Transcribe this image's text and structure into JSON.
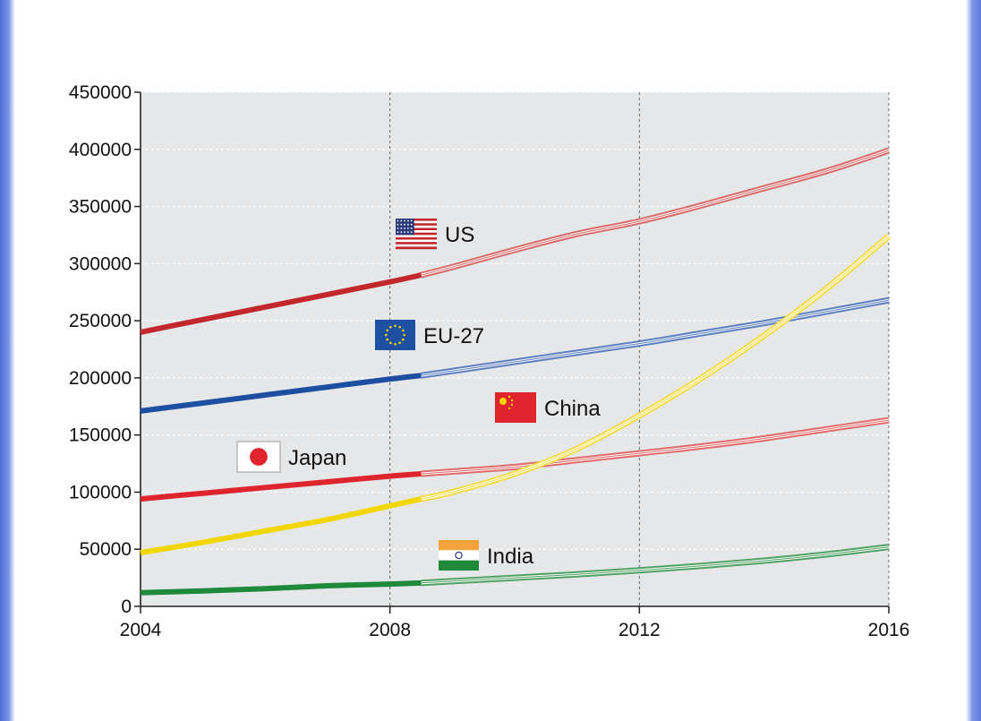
{
  "chart_data": {
    "type": "line",
    "title": "",
    "xlabel": "",
    "ylabel": "",
    "xlim": [
      2004,
      2016
    ],
    "ylim": [
      0,
      450000
    ],
    "x_ticks": [
      "2004",
      "2008",
      "2012",
      "2016"
    ],
    "y_ticks": [
      "0",
      "50000",
      "100000",
      "150000",
      "200000",
      "250000",
      "300000",
      "350000",
      "400000",
      "450000"
    ],
    "grid": true,
    "background": "#e6e7e8",
    "actual_until": 2008.5,
    "series": [
      {
        "name": "US",
        "flag": "us-flag-icon",
        "color": "#c1272d",
        "projection_color": "#d86a6a",
        "x": [
          2004,
          2005,
          2006,
          2007,
          2008,
          2008.5,
          2009,
          2010,
          2011,
          2012,
          2013,
          2014,
          2015,
          2016
        ],
        "y": [
          240000,
          251000,
          262000,
          273000,
          284000,
          290000,
          297000,
          312000,
          326000,
          337000,
          351000,
          366000,
          381000,
          399000
        ]
      },
      {
        "name": "EU-27",
        "flag": "eu-flag-icon",
        "color": "#1c4fa1",
        "projection_color": "#5a7ec0",
        "x": [
          2004,
          2005,
          2006,
          2007,
          2008,
          2008.5,
          2009,
          2010,
          2011,
          2012,
          2013,
          2014,
          2015,
          2016
        ],
        "y": [
          171000,
          178000,
          185000,
          192000,
          199000,
          202000,
          206000,
          214000,
          222000,
          230000,
          239000,
          248000,
          258000,
          268000
        ]
      },
      {
        "name": "China",
        "flag": "china-flag-icon",
        "color": "#f2d600",
        "projection_color": "#f3dc4a",
        "x": [
          2004,
          2005,
          2006,
          2007,
          2008,
          2008.5,
          2009,
          2010,
          2011,
          2012,
          2013,
          2014,
          2015,
          2016
        ],
        "y": [
          47000,
          56000,
          66000,
          76000,
          88000,
          94000,
          100000,
          116000,
          138000,
          167000,
          200000,
          237000,
          278000,
          324000
        ]
      },
      {
        "name": "Japan",
        "flag": "japan-flag-icon",
        "color": "#e0242e",
        "projection_color": "#e06a6a",
        "x": [
          2004,
          2005,
          2006,
          2007,
          2008,
          2008.5,
          2009,
          2010,
          2011,
          2012,
          2013,
          2014,
          2015,
          2016
        ],
        "y": [
          94000,
          99000,
          104000,
          109000,
          114000,
          116000,
          118000,
          122000,
          128000,
          134000,
          140000,
          147000,
          155000,
          163000
        ]
      },
      {
        "name": "India",
        "flag": "india-flag-icon",
        "color": "#1f8a3c",
        "projection_color": "#4fa163",
        "x": [
          2004,
          2005,
          2006,
          2007,
          2008,
          2008.5,
          2009,
          2010,
          2011,
          2012,
          2013,
          2014,
          2015,
          2016
        ],
        "y": [
          12000,
          13500,
          15500,
          18000,
          19500,
          20500,
          22000,
          25000,
          28000,
          31500,
          35500,
          40000,
          45500,
          52000
        ]
      }
    ]
  }
}
